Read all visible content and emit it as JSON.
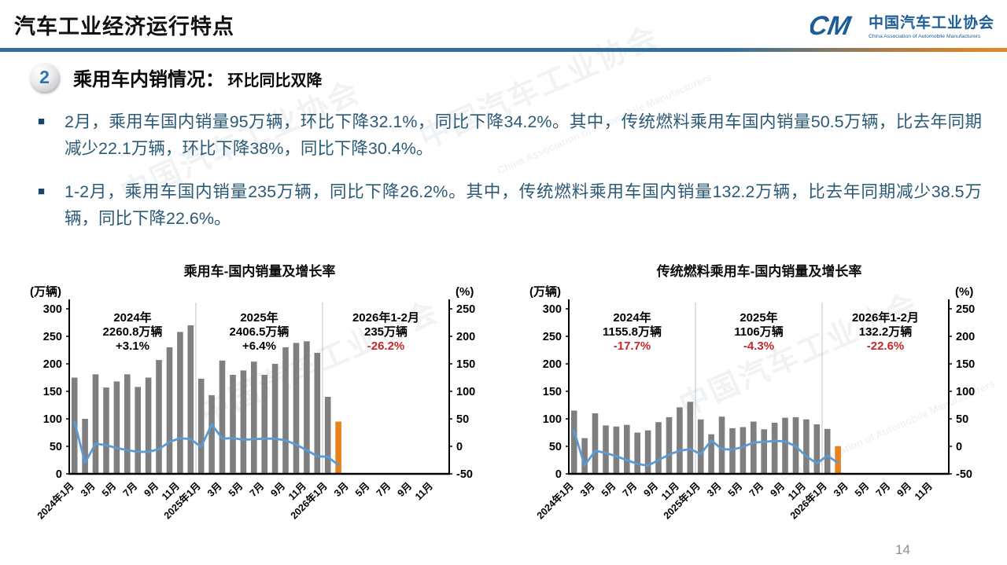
{
  "page": {
    "title": "汽车工业经济运行特点",
    "page_number": "14"
  },
  "logo": {
    "mark": "CM",
    "org_cn": "中国汽车工业协会",
    "org_en": "China Association of Automobile Manufacturers"
  },
  "section": {
    "number": "2",
    "title": "乘用车内销情况：",
    "subtitle": "环比同比双降"
  },
  "bullets": [
    "2月，乘用车国内销量95万辆，环比下降32.1%，同比下降34.2%。其中，传统燃料乘用车国内销量50.5万辆，比去年同期减少22.1万辆，环比下降38%，同比下降30.4%。",
    "1-2月，乘用车国内销量235万辆，同比下降26.2%。其中，传统燃料乘用车国内销量132.2万辆，比去年同期减少38.5万辆，同比下降22.6%。"
  ],
  "watermark": {
    "cn": "中国汽车工业协会",
    "en": "China Association of Automobile Manufacturers"
  },
  "colors": {
    "bar": "#7F7F7F",
    "bar_highlight": "#E8821E",
    "line": "#5B9BD5",
    "negative_pct": "#C62828",
    "axis": "#000000",
    "separator": "#B9C6D2",
    "rule_blue": "#31709B",
    "rule_orange": "#D9822B",
    "logo_blue": "#1E5C97",
    "body_text": "#2B5A76"
  },
  "chart_data": [
    {
      "type": "bar+line",
      "title": "乘用车-国内销量及增长率",
      "left_axis_title": "(万辆)",
      "right_axis_title": "(%)",
      "left_axis": {
        "min": 0,
        "max": 300,
        "ticks": [
          300,
          250,
          200,
          150,
          100,
          50,
          0
        ]
      },
      "right_axis": {
        "min": -50,
        "max": 250,
        "ticks": [
          250,
          200,
          150,
          100,
          50,
          0,
          -50
        ]
      },
      "total_slots": 36,
      "x_tick_labels": [
        "2024年1月",
        "3月",
        "5月",
        "7月",
        "9月",
        "11月",
        "2025年1月",
        "3月",
        "5月",
        "7月",
        "9月",
        "11月",
        "2026年1月",
        "3月",
        "5月",
        "7月",
        "9月",
        "11月"
      ],
      "year_separators_after": [
        12,
        24
      ],
      "bar_series": {
        "name": "国内销量",
        "unit": "万辆",
        "values": [
          175,
          100,
          181,
          157,
          168,
          181,
          158,
          175,
          207,
          230,
          258,
          270,
          173,
          143,
          206,
          180,
          188,
          204,
          180,
          200,
          230,
          238,
          241,
          220,
          140,
          95
        ],
        "highlight_last": true
      },
      "line_series": {
        "name": "同比增长率",
        "unit": "%",
        "values": [
          45,
          -30,
          5,
          2,
          -3,
          -7,
          -10,
          -10,
          -5,
          8,
          15,
          13,
          -1,
          40,
          14,
          15,
          12,
          13,
          14,
          14,
          11,
          3,
          -7,
          -18,
          -19,
          -34
        ]
      },
      "annotations": [
        {
          "label": "2024年",
          "value": "2260.8万辆",
          "pct": "+3.1%",
          "pct_red": false
        },
        {
          "label": "2025年",
          "value": "2406.5万辆",
          "pct": "+6.4%",
          "pct_red": false
        },
        {
          "label": "2026年1-2月",
          "value": "235万辆",
          "pct": "-26.2%",
          "pct_red": true
        }
      ]
    },
    {
      "type": "bar+line",
      "title": "传统燃料乘用车-国内销量及增长率",
      "left_axis_title": "(万辆)",
      "right_axis_title": "(%)",
      "left_axis": {
        "min": 0,
        "max": 300,
        "ticks": [
          300,
          250,
          200,
          150,
          100,
          50,
          0
        ]
      },
      "right_axis": {
        "min": -50,
        "max": 250,
        "ticks": [
          250,
          200,
          150,
          100,
          50,
          0,
          -50
        ]
      },
      "total_slots": 36,
      "x_tick_labels": [
        "2024年1月",
        "3月",
        "5月",
        "7月",
        "9月",
        "11月",
        "2025年1月",
        "3月",
        "5月",
        "7月",
        "9月",
        "11月",
        "2026年1月",
        "3月",
        "5月",
        "7月",
        "9月",
        "11月"
      ],
      "year_separators_after": [
        12,
        24
      ],
      "bar_series": {
        "name": "国内销量",
        "unit": "万辆",
        "values": [
          115,
          65,
          110,
          88,
          86,
          89,
          75,
          79,
          94,
          103,
          121,
          131,
          99,
          72,
          104,
          83,
          85,
          95,
          81,
          93,
          102,
          103,
          99,
          90,
          81.7,
          50.5
        ],
        "highlight_last": true
      },
      "line_series": {
        "name": "同比增长率",
        "unit": "%",
        "values": [
          28,
          -35,
          -8,
          -12,
          -18,
          -25,
          -32,
          -35,
          -25,
          -15,
          -8,
          -5,
          -14,
          11,
          -5,
          -6,
          -1,
          7,
          8,
          10,
          9,
          0,
          -18,
          -31,
          -17,
          -30
        ]
      },
      "annotations": [
        {
          "label": "2024年",
          "value": "1155.8万辆",
          "pct": "-17.7%",
          "pct_red": true
        },
        {
          "label": "2025年",
          "value": "1106万辆",
          "pct": "-4.3%",
          "pct_red": true
        },
        {
          "label": "2026年1-2月",
          "value": "132.2万辆",
          "pct": "-22.6%",
          "pct_red": true
        }
      ]
    }
  ]
}
